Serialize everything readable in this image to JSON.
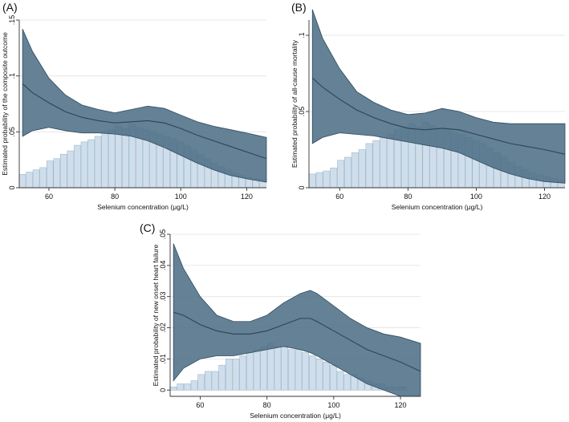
{
  "colors": {
    "band_fill": "#4f6f86",
    "band_edge": "#2f4b60",
    "mean_line": "#2c4558",
    "hist_fill": "#cfdeea",
    "hist_edge": "#9fb9cf",
    "grid": "#e2e2e2",
    "axis": "#333333"
  },
  "chart_data": [
    {
      "panel": "(A)",
      "type": "area",
      "xlabel": "Selenium concentration (μg/L)",
      "ylabel": "Estimated probability of the composite outcome",
      "xlim": [
        51,
        126
      ],
      "ylim": [
        0,
        0.15
      ],
      "xticks": [
        60,
        80,
        100,
        120
      ],
      "yticks": [
        0,
        0.05,
        0.1,
        0.15
      ],
      "ytick_labels": [
        "0",
        ".05",
        ".1",
        ".15"
      ],
      "x": [
        52,
        55,
        60,
        65,
        70,
        75,
        80,
        85,
        90,
        95,
        100,
        105,
        110,
        115,
        120,
        126
      ],
      "mean": [
        0.093,
        0.085,
        0.076,
        0.068,
        0.063,
        0.06,
        0.058,
        0.059,
        0.06,
        0.058,
        0.053,
        0.047,
        0.042,
        0.037,
        0.032,
        0.026
      ],
      "upper": [
        0.142,
        0.122,
        0.098,
        0.083,
        0.074,
        0.07,
        0.067,
        0.07,
        0.073,
        0.071,
        0.065,
        0.059,
        0.055,
        0.052,
        0.049,
        0.045
      ],
      "lower": [
        0.046,
        0.051,
        0.054,
        0.051,
        0.049,
        0.049,
        0.048,
        0.046,
        0.042,
        0.036,
        0.029,
        0.022,
        0.016,
        0.011,
        0.008,
        0.005
      ],
      "histogram": [
        0.012,
        0.014,
        0.016,
        0.018,
        0.024,
        0.026,
        0.03,
        0.033,
        0.038,
        0.041,
        0.043,
        0.046,
        0.05,
        0.052,
        0.055,
        0.053,
        0.057,
        0.054,
        0.052,
        0.05,
        0.048,
        0.046,
        0.044,
        0.041,
        0.038,
        0.034,
        0.03,
        0.026,
        0.022,
        0.019,
        0.016,
        0.013,
        0.011,
        0.009,
        0.008,
        0.007
      ]
    },
    {
      "panel": "(B)",
      "type": "area",
      "xlabel": "Selenium concentration (μg/L)",
      "ylabel": "Estimated probability of all-cause mortality",
      "xlim": [
        51,
        126
      ],
      "ylim": [
        0,
        0.11
      ],
      "xticks": [
        60,
        80,
        100,
        120
      ],
      "yticks": [
        0,
        0.05,
        0.1
      ],
      "ytick_labels": [
        "0",
        ".05",
        ".1"
      ],
      "x": [
        52,
        55,
        60,
        65,
        70,
        75,
        80,
        85,
        90,
        95,
        100,
        105,
        110,
        115,
        120,
        126
      ],
      "mean": [
        0.072,
        0.066,
        0.058,
        0.051,
        0.046,
        0.042,
        0.039,
        0.038,
        0.039,
        0.038,
        0.035,
        0.032,
        0.029,
        0.027,
        0.025,
        0.022
      ],
      "upper": [
        0.117,
        0.098,
        0.078,
        0.063,
        0.056,
        0.051,
        0.048,
        0.049,
        0.052,
        0.05,
        0.046,
        0.043,
        0.042,
        0.042,
        0.042,
        0.042
      ],
      "lower": [
        0.029,
        0.033,
        0.036,
        0.035,
        0.034,
        0.032,
        0.03,
        0.028,
        0.026,
        0.023,
        0.018,
        0.013,
        0.009,
        0.006,
        0.004,
        0.003
      ],
      "histogram": [
        0.009,
        0.01,
        0.011,
        0.013,
        0.018,
        0.02,
        0.023,
        0.025,
        0.029,
        0.031,
        0.033,
        0.035,
        0.038,
        0.04,
        0.042,
        0.04,
        0.043,
        0.041,
        0.039,
        0.038,
        0.036,
        0.035,
        0.033,
        0.031,
        0.029,
        0.026,
        0.023,
        0.02,
        0.017,
        0.014,
        0.012,
        0.01,
        0.008,
        0.007,
        0.006,
        0.005
      ]
    },
    {
      "panel": "(C)",
      "type": "area",
      "xlabel": "Selenium concentration (μg/L)",
      "ylabel": "Estimated probability of new onset heart failure",
      "xlim": [
        51,
        126
      ],
      "ylim": [
        -0.002,
        0.05
      ],
      "xticks": [
        60,
        80,
        100,
        120
      ],
      "yticks": [
        0,
        0.01,
        0.02,
        0.03,
        0.04,
        0.05
      ],
      "ytick_labels": [
        "0",
        ".01",
        ".02",
        ".03",
        ".04",
        ".05"
      ],
      "x": [
        52,
        55,
        60,
        65,
        70,
        75,
        80,
        85,
        90,
        93,
        95,
        100,
        105,
        110,
        115,
        120,
        126
      ],
      "mean": [
        0.025,
        0.024,
        0.021,
        0.019,
        0.018,
        0.018,
        0.019,
        0.021,
        0.023,
        0.023,
        0.022,
        0.019,
        0.016,
        0.013,
        0.011,
        0.009,
        0.006
      ],
      "upper": [
        0.047,
        0.039,
        0.03,
        0.024,
        0.022,
        0.022,
        0.024,
        0.028,
        0.031,
        0.032,
        0.031,
        0.027,
        0.023,
        0.02,
        0.018,
        0.017,
        0.015
      ],
      "lower": [
        0.003,
        0.007,
        0.01,
        0.011,
        0.011,
        0.012,
        0.013,
        0.014,
        0.013,
        0.012,
        0.011,
        0.008,
        0.005,
        0.002,
        0.0,
        -0.002,
        -0.002
      ],
      "histogram": [
        0.001,
        0.002,
        0.002,
        0.003,
        0.005,
        0.006,
        0.006,
        0.008,
        0.01,
        0.01,
        0.011,
        0.012,
        0.013,
        0.014,
        0.015,
        0.014,
        0.014,
        0.013,
        0.013,
        0.012,
        0.011,
        0.01,
        0.009,
        0.008,
        0.006,
        0.005,
        0.005,
        0.004,
        0.003,
        0.002,
        0.002,
        0.001,
        0.001,
        0.001,
        0.0,
        0.0
      ]
    }
  ]
}
